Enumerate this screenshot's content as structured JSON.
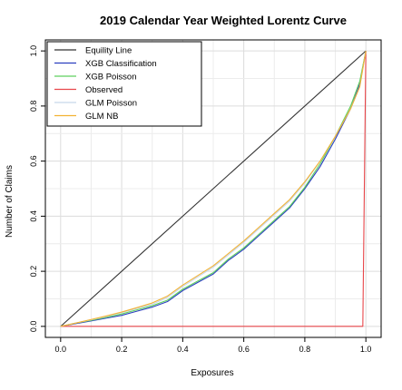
{
  "chart_data": {
    "type": "line",
    "title": "2019 Calendar Year Weighted Lorentz Curve",
    "xlabel": "Exposures",
    "ylabel": "Number of Claims",
    "xlim": [
      -0.05,
      1.05
    ],
    "ylim": [
      -0.04,
      1.04
    ],
    "xticks": [
      "0.0",
      "0.2",
      "0.4",
      "0.6",
      "0.8",
      "1.0"
    ],
    "yticks": [
      "0.0",
      "0.2",
      "0.4",
      "0.6",
      "0.8",
      "1.0"
    ],
    "grid": true,
    "legend_position": "top-left",
    "series": [
      {
        "name": "Equility Line",
        "color": "#333333",
        "x": [
          0,
          1
        ],
        "y": [
          0,
          1
        ]
      },
      {
        "name": "XGB Classification",
        "color": "#2b3fbf",
        "x": [
          0,
          0.05,
          0.1,
          0.15,
          0.2,
          0.25,
          0.3,
          0.35,
          0.4,
          0.45,
          0.5,
          0.55,
          0.6,
          0.65,
          0.7,
          0.75,
          0.8,
          0.85,
          0.9,
          0.95,
          0.98,
          1.0
        ],
        "y": [
          0,
          0.01,
          0.02,
          0.03,
          0.04,
          0.055,
          0.07,
          0.09,
          0.13,
          0.16,
          0.19,
          0.24,
          0.28,
          0.33,
          0.38,
          0.43,
          0.5,
          0.58,
          0.68,
          0.79,
          0.88,
          1.0
        ]
      },
      {
        "name": "XGB Poisson",
        "color": "#5ed15e",
        "x": [
          0,
          0.05,
          0.1,
          0.15,
          0.2,
          0.25,
          0.3,
          0.35,
          0.4,
          0.45,
          0.5,
          0.55,
          0.6,
          0.65,
          0.7,
          0.75,
          0.8,
          0.85,
          0.9,
          0.95,
          0.98,
          1.0
        ],
        "y": [
          0,
          0.012,
          0.022,
          0.033,
          0.045,
          0.06,
          0.075,
          0.095,
          0.135,
          0.165,
          0.195,
          0.245,
          0.285,
          0.335,
          0.385,
          0.435,
          0.505,
          0.59,
          0.69,
          0.8,
          0.89,
          1.0
        ]
      },
      {
        "name": "Observed",
        "color": "#e8464a",
        "x": [
          0,
          0.99,
          1.0
        ],
        "y": [
          0,
          0,
          1.0
        ]
      },
      {
        "name": "GLM Poisson",
        "color": "#c8d8ea",
        "x": [
          0,
          0.05,
          0.1,
          0.15,
          0.2,
          0.25,
          0.3,
          0.35,
          0.4,
          0.45,
          0.5,
          0.55,
          0.6,
          0.65,
          0.7,
          0.75,
          0.8,
          0.85,
          0.9,
          0.95,
          0.98,
          1.0
        ],
        "y": [
          0,
          0.012,
          0.024,
          0.036,
          0.05,
          0.065,
          0.08,
          0.105,
          0.145,
          0.18,
          0.215,
          0.26,
          0.305,
          0.355,
          0.405,
          0.455,
          0.52,
          0.6,
          0.69,
          0.79,
          0.87,
          1.0
        ]
      },
      {
        "name": "GLM NB",
        "color": "#f2b233",
        "x": [
          0,
          0.05,
          0.1,
          0.15,
          0.2,
          0.25,
          0.3,
          0.35,
          0.4,
          0.45,
          0.5,
          0.55,
          0.6,
          0.65,
          0.7,
          0.75,
          0.8,
          0.85,
          0.9,
          0.95,
          0.98,
          1.0
        ],
        "y": [
          0,
          0.012,
          0.025,
          0.038,
          0.052,
          0.068,
          0.085,
          0.11,
          0.15,
          0.185,
          0.22,
          0.265,
          0.31,
          0.36,
          0.41,
          0.46,
          0.525,
          0.6,
          0.69,
          0.79,
          0.87,
          1.0
        ]
      }
    ]
  }
}
